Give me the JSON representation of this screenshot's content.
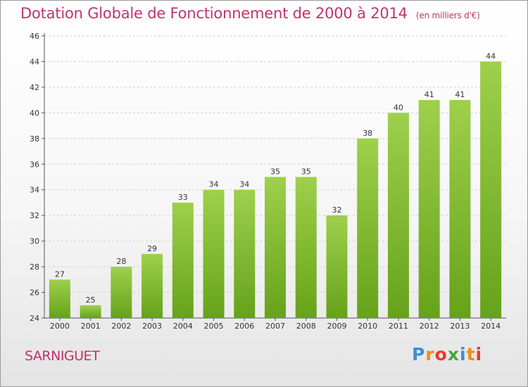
{
  "header": {
    "title": "Dotation Globale de Fonctionnement de 2000 à 2014",
    "unit": "(en milliers d'€)"
  },
  "footer": {
    "commune": "SARNIGUET",
    "logo_letters": [
      "P",
      "r",
      "o",
      "x",
      "i",
      "t",
      "i"
    ],
    "logo_colors": [
      "#3b8fd6",
      "#f08c1e",
      "#e23c2a",
      "#4aa63c",
      "#3b8fd6",
      "#f08c1e",
      "#e23c2a"
    ]
  },
  "colors": {
    "bar_light": "#9ed04c",
    "bar_dark": "#66a21a",
    "title": "#c0336e",
    "grid": "#cfcfcf"
  },
  "chart_data": {
    "type": "bar",
    "title": "Dotation Globale de Fonctionnement de 2000 à 2014",
    "subtitle": "(en milliers d'€)",
    "categories": [
      "2000",
      "2001",
      "2002",
      "2003",
      "2004",
      "2005",
      "2006",
      "2007",
      "2008",
      "2009",
      "2010",
      "2011",
      "2012",
      "2013",
      "2014"
    ],
    "values": [
      27,
      25,
      28,
      29,
      33,
      34,
      34,
      35,
      35,
      32,
      38,
      40,
      41,
      41,
      44
    ],
    "ylim": [
      24,
      46
    ],
    "yticks": [
      24,
      26,
      28,
      30,
      32,
      34,
      36,
      38,
      40,
      42,
      44,
      46
    ],
    "grid": true,
    "data_labels": true
  }
}
